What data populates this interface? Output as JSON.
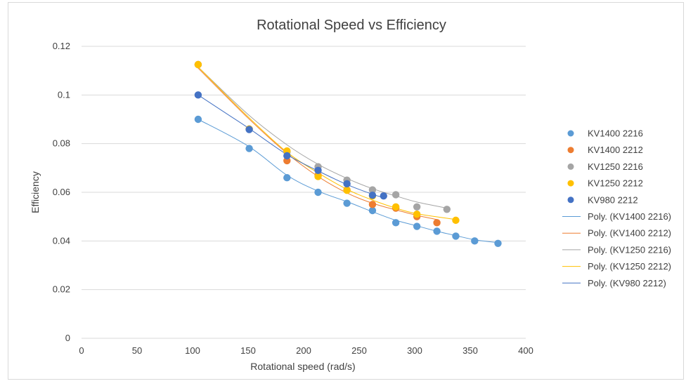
{
  "chart_data": {
    "type": "scatter",
    "title": "Rotational Speed vs Efficiency",
    "xlabel": "Rotational speed (rad/s)",
    "ylabel": "Efficiency",
    "xlim": [
      0,
      400
    ],
    "ylim": [
      0,
      0.12
    ],
    "x_ticks": [
      0,
      50,
      100,
      150,
      200,
      250,
      300,
      350,
      400
    ],
    "y_ticks": [
      0,
      0.02,
      0.04,
      0.06,
      0.08,
      0.1,
      0.12
    ],
    "grid": "horizontal",
    "legend_position": "right",
    "series": [
      {
        "name": "KV1400 2216",
        "color": "#5B9BD5",
        "points": [
          [
            105,
            0.09
          ],
          [
            151,
            0.078
          ],
          [
            185,
            0.066
          ],
          [
            213,
            0.06
          ],
          [
            239,
            0.0555
          ],
          [
            262,
            0.0525
          ],
          [
            283,
            0.0475
          ],
          [
            302,
            0.046
          ],
          [
            320,
            0.044
          ],
          [
            337,
            0.042
          ],
          [
            354,
            0.04
          ],
          [
            375,
            0.039
          ]
        ]
      },
      {
        "name": "KV1400 2212",
        "color": "#ED7D31",
        "points": [
          [
            105,
            0.1125
          ],
          [
            151,
            0.086
          ],
          [
            185,
            0.073
          ],
          [
            213,
            0.067
          ],
          [
            239,
            0.061
          ],
          [
            262,
            0.055
          ],
          [
            283,
            0.0535
          ],
          [
            302,
            0.05
          ],
          [
            320,
            0.0475
          ]
        ]
      },
      {
        "name": "KV1250 2216",
        "color": "#A5A5A5",
        "points": [
          [
            105,
            0.1125
          ],
          [
            151,
            0.086
          ],
          [
            185,
            0.0765
          ],
          [
            213,
            0.0705
          ],
          [
            239,
            0.065
          ],
          [
            262,
            0.061
          ],
          [
            283,
            0.059
          ],
          [
            302,
            0.054
          ],
          [
            329,
            0.053
          ]
        ]
      },
      {
        "name": "KV1250 2212",
        "color": "#FFC000",
        "points": [
          [
            105,
            0.1125
          ],
          [
            151,
            0.086
          ],
          [
            185,
            0.077
          ],
          [
            213,
            0.0665
          ],
          [
            239,
            0.0608
          ],
          [
            262,
            0.0585
          ],
          [
            283,
            0.054
          ],
          [
            302,
            0.051
          ],
          [
            337,
            0.0485
          ]
        ]
      },
      {
        "name": "KV980 2212",
        "color": "#4472C4",
        "points": [
          [
            105,
            0.1
          ],
          [
            151,
            0.0858
          ],
          [
            185,
            0.075
          ],
          [
            213,
            0.069
          ],
          [
            239,
            0.0635
          ],
          [
            262,
            0.0588
          ],
          [
            272,
            0.0585
          ]
        ]
      }
    ],
    "trendlines": [
      {
        "name": "Poly. (KV1400 2216)",
        "color": "#5B9BD5",
        "x_range": [
          105,
          375
        ],
        "points": [
          [
            105,
            0.09
          ],
          [
            150,
            0.079
          ],
          [
            185,
            0.067
          ],
          [
            213,
            0.0605
          ],
          [
            240,
            0.056
          ],
          [
            262,
            0.052
          ],
          [
            283,
            0.0485
          ],
          [
            302,
            0.0462
          ],
          [
            320,
            0.044
          ],
          [
            337,
            0.0422
          ],
          [
            354,
            0.0405
          ],
          [
            375,
            0.0393
          ]
        ]
      },
      {
        "name": "Poly. (KV1400 2212)",
        "color": "#ED7D31",
        "x_range": [
          105,
          320
        ],
        "points": [
          [
            105,
            0.111
          ],
          [
            150,
            0.0905
          ],
          [
            185,
            0.076
          ],
          [
            213,
            0.0665
          ],
          [
            240,
            0.0595
          ],
          [
            262,
            0.0555
          ],
          [
            283,
            0.0528
          ],
          [
            302,
            0.0505
          ],
          [
            320,
            0.0488
          ]
        ]
      },
      {
        "name": "Poly. (KV1250 2216)",
        "color": "#A5A5A5",
        "x_range": [
          105,
          329
        ],
        "points": [
          [
            105,
            0.1115
          ],
          [
            150,
            0.092
          ],
          [
            185,
            0.0795
          ],
          [
            213,
            0.0715
          ],
          [
            240,
            0.0655
          ],
          [
            262,
            0.0615
          ],
          [
            283,
            0.0585
          ],
          [
            302,
            0.056
          ],
          [
            329,
            0.0535
          ]
        ]
      },
      {
        "name": "Poly. (KV1250 2212)",
        "color": "#FFC000",
        "x_range": [
          105,
          337
        ],
        "points": [
          [
            105,
            0.1115
          ],
          [
            150,
            0.091
          ],
          [
            185,
            0.0765
          ],
          [
            213,
            0.068
          ],
          [
            240,
            0.061
          ],
          [
            262,
            0.0568
          ],
          [
            283,
            0.0535
          ],
          [
            302,
            0.0512
          ],
          [
            337,
            0.0488
          ]
        ]
      },
      {
        "name": "Poly. (KV980 2212)",
        "color": "#4472C4",
        "x_range": [
          105,
          272
        ],
        "points": [
          [
            105,
            0.1
          ],
          [
            130,
            0.0925
          ],
          [
            151,
            0.0862
          ],
          [
            185,
            0.0755
          ],
          [
            213,
            0.0688
          ],
          [
            239,
            0.0632
          ],
          [
            262,
            0.0592
          ],
          [
            272,
            0.0578
          ]
        ]
      }
    ]
  }
}
